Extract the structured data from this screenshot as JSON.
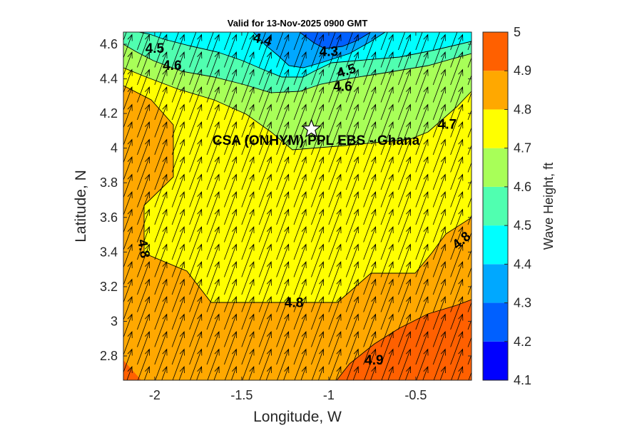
{
  "chart_data": {
    "type": "contour",
    "title": "Valid for 13-Nov-2025 0900 GMT",
    "xlabel": "Longitude, W",
    "ylabel": "Latitude, N",
    "xlim": [
      -2.18,
      -0.18
    ],
    "ylim": [
      2.66,
      4.67
    ],
    "xticks": [
      -2,
      -1.5,
      -1,
      -0.5
    ],
    "xtick_labels": [
      "-2",
      "-1.5",
      "-1",
      "-0.5"
    ],
    "yticks": [
      2.8,
      3,
      3.2,
      3.4,
      3.6,
      3.8,
      4,
      4.2,
      4.4,
      4.6
    ],
    "ytick_labels": [
      "2.8",
      "3",
      "3.2",
      "3.4",
      "3.6",
      "3.8",
      "4",
      "4.2",
      "4.4",
      "4.6"
    ],
    "colorbar": {
      "label": "Wave Height, ft",
      "range": [
        4.1,
        5
      ],
      "ticks": [
        "5",
        "4.9",
        "4.8",
        "4.7",
        "4.6",
        "4.5",
        "4.4",
        "4.3",
        "4.2",
        "4.1"
      ],
      "levels": [
        4.1,
        4.2,
        4.3,
        4.4,
        4.5,
        4.6,
        4.7,
        4.8,
        4.9,
        5.0
      ],
      "colors": [
        "#0000ff",
        "#0060ff",
        "#00a8ff",
        "#00ffff",
        "#50ffb0",
        "#a8ff58",
        "#ffff00",
        "#ffa800",
        "#ff6000",
        "#ff5000"
      ]
    },
    "contour_labels": [
      {
        "text": "4.4",
        "lon": -1.38,
        "lat": 4.63
      },
      {
        "text": "4.5",
        "lon": -2.0,
        "lat": 4.58
      },
      {
        "text": "4.3",
        "lon": -1.0,
        "lat": 4.56
      },
      {
        "text": "4.6",
        "lon": -1.9,
        "lat": 4.48
      },
      {
        "text": "4.5",
        "lon": -0.9,
        "lat": 4.45
      },
      {
        "text": "4.6",
        "lon": -0.92,
        "lat": 4.36
      },
      {
        "text": "4.7",
        "lon": -0.32,
        "lat": 4.14
      },
      {
        "text": "4.8",
        "lon": -2.06,
        "lat": 3.42
      },
      {
        "text": "4.8",
        "lon": -0.24,
        "lat": 3.47
      },
      {
        "text": "4.8",
        "lon": -1.2,
        "lat": 3.11
      },
      {
        "text": "4.9",
        "lon": -0.74,
        "lat": 2.78
      }
    ],
    "site": {
      "label": "CSA (ONHYM) PPL EBS  - Ghana",
      "lon": -1.1,
      "lat": 4.11,
      "marker": "star"
    },
    "wave_direction": "toward north-northeast (uniform arrows)"
  }
}
